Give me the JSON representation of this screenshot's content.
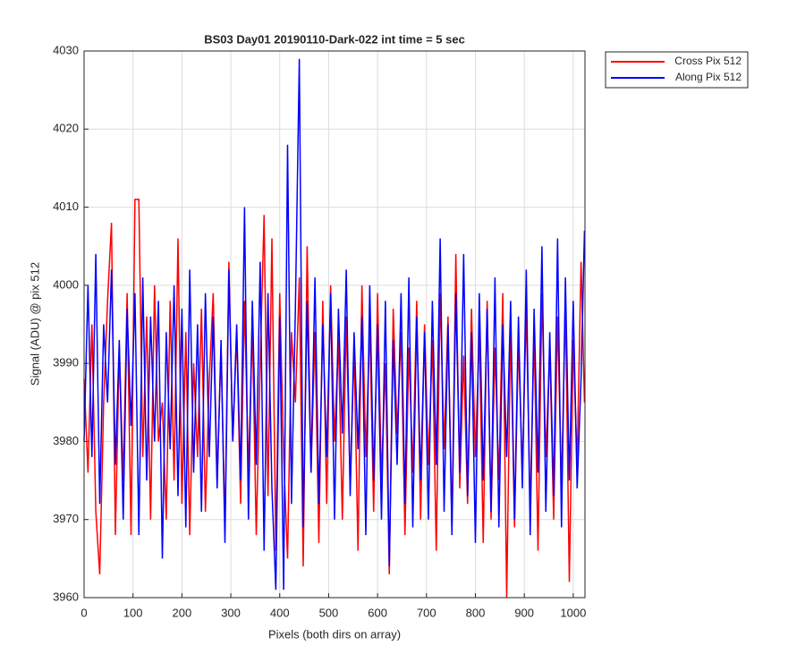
{
  "chart_data": {
    "type": "line",
    "title": "BS03 Day01 20190110-Dark-022 int time = 5 sec",
    "xlabel": "Pixels (both dirs on array)",
    "ylabel": "Signal (ADU) @ pix 512",
    "x": [
      0,
      8,
      16,
      24,
      32,
      40,
      48,
      56,
      64,
      72,
      80,
      88,
      96,
      104,
      112,
      120,
      128,
      136,
      144,
      152,
      160,
      168,
      176,
      184,
      192,
      200,
      208,
      216,
      224,
      232,
      240,
      248,
      256,
      264,
      272,
      280,
      288,
      296,
      304,
      312,
      320,
      328,
      336,
      344,
      352,
      360,
      368,
      376,
      384,
      392,
      400,
      408,
      416,
      424,
      432,
      440,
      448,
      456,
      464,
      472,
      480,
      488,
      496,
      504,
      512,
      520,
      528,
      536,
      544,
      552,
      560,
      568,
      576,
      584,
      592,
      600,
      608,
      616,
      624,
      632,
      640,
      648,
      656,
      664,
      672,
      680,
      688,
      696,
      704,
      712,
      720,
      728,
      736,
      744,
      752,
      760,
      768,
      776,
      784,
      792,
      800,
      808,
      816,
      824,
      832,
      840,
      848,
      856,
      864,
      872,
      880,
      888,
      896,
      904,
      912,
      920,
      928,
      936,
      944,
      952,
      960,
      968,
      976,
      984,
      992,
      1000,
      1008,
      1016,
      1023
    ],
    "series": [
      {
        "name": "Cross Pix 512",
        "color": "#ff0000",
        "values": [
          3988,
          3976,
          3995,
          3971,
          3963,
          3985,
          3998,
          4008,
          3968,
          3992,
          3975,
          3999,
          3968,
          4011,
          4011,
          3978,
          3996,
          3970,
          4000,
          3980,
          3985,
          3970,
          3998,
          3975,
          4006,
          3972,
          3994,
          3968,
          3990,
          3978,
          3997,
          3971,
          3988,
          3999,
          3975,
          3992,
          3969,
          4003,
          3980,
          3994,
          3972,
          3998,
          3976,
          3995,
          3968,
          3990,
          4009,
          3973,
          4006,
          3966,
          3999,
          3978,
          3965,
          3994,
          3985,
          4001,
          3964,
          4005,
          3976,
          3994,
          3967,
          3998,
          3972,
          4000,
          3980,
          3993,
          3970,
          3996,
          3974,
          3992,
          3966,
          4000,
          3978,
          3995,
          3971,
          3999,
          3975,
          3990,
          3963,
          3997,
          3981,
          3994,
          3968,
          3992,
          3976,
          3998,
          3970,
          3995,
          3977,
          3993,
          3966,
          3999,
          3979,
          3996,
          3969,
          4004,
          3974,
          3991,
          3972,
          3997,
          3978,
          3994,
          3967,
          3998,
          3970,
          3992,
          3975,
          3999,
          3960,
          3995,
          3969,
          3993,
          3976,
          3997,
          3971,
          3994,
          3966,
          3999,
          3978,
          3992,
          3970,
          3996,
          3974,
          3998,
          3962,
          3993,
          3977,
          4003,
          3985
        ]
      },
      {
        "name": "Along Pix 512",
        "color": "#0000ff",
        "values": [
          3980,
          4000,
          3978,
          4004,
          3972,
          3995,
          3985,
          4002,
          3977,
          3993,
          3970,
          3997,
          3982,
          3999,
          3968,
          4001,
          3975,
          3996,
          3980,
          3998,
          3965,
          3994,
          3979,
          4000,
          3973,
          3997,
          3969,
          4002,
          3976,
          3995,
          3971,
          3999,
          3978,
          3996,
          3974,
          3993,
          3967,
          4002,
          3980,
          3995,
          3975,
          4010,
          3970,
          3998,
          3977,
          4003,
          3966,
          3999,
          3974,
          3961,
          3996,
          3961,
          4018,
          3972,
          3997,
          4029,
          3969,
          3998,
          3976,
          4001,
          3972,
          3995,
          3978,
          3999,
          3970,
          3997,
          3981,
          4002,
          3973,
          3994,
          3979,
          3996,
          3968,
          4000,
          3975,
          3995,
          3970,
          3998,
          3964,
          3993,
          3977,
          3999,
          3972,
          4001,
          3969,
          3996,
          3975,
          3994,
          3970,
          3998,
          3977,
          4006,
          3971,
          3995,
          3968,
          3999,
          3976,
          4004,
          3973,
          3994,
          3967,
          3999,
          3975,
          3997,
          3971,
          4001,
          3969,
          3995,
          3978,
          3998,
          3970,
          3996,
          3974,
          4002,
          3968,
          3997,
          3976,
          4005,
          3971,
          3994,
          3973,
          4006,
          3969,
          4001,
          3975,
          3998,
          3974,
          3988,
          4007
        ]
      }
    ],
    "xlim": [
      0,
      1024
    ],
    "xticks": [
      0,
      100,
      200,
      300,
      400,
      500,
      600,
      700,
      800,
      900,
      1000
    ],
    "ylim": [
      3960,
      4030
    ],
    "yticks": [
      3960,
      3970,
      3980,
      3990,
      4000,
      4010,
      4020,
      4030
    ],
    "grid": true,
    "legend": "outside-northeast"
  }
}
